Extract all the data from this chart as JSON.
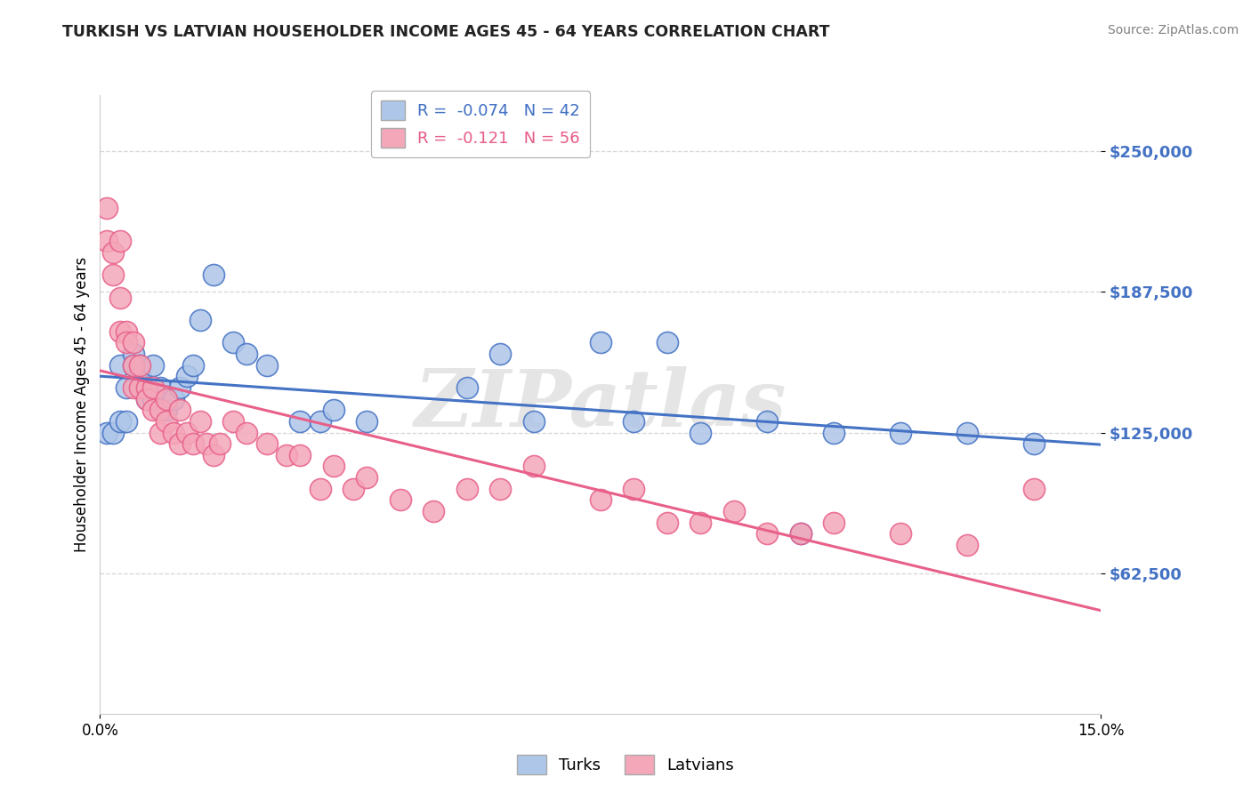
{
  "title": "TURKISH VS LATVIAN HOUSEHOLDER INCOME AGES 45 - 64 YEARS CORRELATION CHART",
  "source": "Source: ZipAtlas.com",
  "ylabel": "Householder Income Ages 45 - 64 years",
  "xlim": [
    0.0,
    0.15
  ],
  "ylim": [
    0,
    275000
  ],
  "yticks": [
    62500,
    125000,
    187500,
    250000
  ],
  "ytick_labels": [
    "$62,500",
    "$125,000",
    "$187,500",
    "$250,000"
  ],
  "xticks": [
    0.0,
    0.15
  ],
  "xtick_labels": [
    "0.0%",
    "15.0%"
  ],
  "legend_turks": "R =  -0.074   N = 42",
  "legend_latvians": "R =  -0.121   N = 56",
  "color_turks": "#AEC6E8",
  "color_latvians": "#F4A7B9",
  "line_color_turks": "#4472C4",
  "line_color_latvians": "#E8608A",
  "background_color": "#FFFFFF",
  "watermark": "ZIPatlas",
  "turks_x": [
    0.001,
    0.002,
    0.003,
    0.003,
    0.004,
    0.004,
    0.005,
    0.005,
    0.006,
    0.006,
    0.007,
    0.007,
    0.008,
    0.008,
    0.009,
    0.01,
    0.011,
    0.012,
    0.013,
    0.014,
    0.015,
    0.017,
    0.02,
    0.022,
    0.025,
    0.03,
    0.033,
    0.035,
    0.04,
    0.055,
    0.06,
    0.065,
    0.075,
    0.08,
    0.085,
    0.09,
    0.1,
    0.105,
    0.11,
    0.12,
    0.13,
    0.14
  ],
  "turks_y": [
    125000,
    125000,
    130000,
    155000,
    130000,
    145000,
    160000,
    155000,
    155000,
    150000,
    145000,
    140000,
    155000,
    140000,
    145000,
    135000,
    140000,
    145000,
    150000,
    155000,
    175000,
    195000,
    165000,
    160000,
    155000,
    130000,
    130000,
    135000,
    130000,
    145000,
    160000,
    130000,
    165000,
    130000,
    165000,
    125000,
    130000,
    80000,
    125000,
    125000,
    125000,
    120000
  ],
  "latvians_x": [
    0.001,
    0.001,
    0.002,
    0.002,
    0.003,
    0.003,
    0.003,
    0.004,
    0.004,
    0.005,
    0.005,
    0.005,
    0.006,
    0.006,
    0.007,
    0.007,
    0.008,
    0.008,
    0.009,
    0.009,
    0.01,
    0.01,
    0.011,
    0.012,
    0.012,
    0.013,
    0.014,
    0.015,
    0.016,
    0.017,
    0.018,
    0.02,
    0.022,
    0.025,
    0.028,
    0.03,
    0.033,
    0.035,
    0.038,
    0.04,
    0.045,
    0.05,
    0.055,
    0.06,
    0.065,
    0.075,
    0.08,
    0.085,
    0.09,
    0.095,
    0.1,
    0.105,
    0.11,
    0.12,
    0.13,
    0.14
  ],
  "latvians_y": [
    225000,
    210000,
    205000,
    195000,
    210000,
    185000,
    170000,
    170000,
    165000,
    165000,
    155000,
    145000,
    155000,
    145000,
    145000,
    140000,
    145000,
    135000,
    135000,
    125000,
    130000,
    140000,
    125000,
    135000,
    120000,
    125000,
    120000,
    130000,
    120000,
    115000,
    120000,
    130000,
    125000,
    120000,
    115000,
    115000,
    100000,
    110000,
    100000,
    105000,
    95000,
    90000,
    100000,
    100000,
    110000,
    95000,
    100000,
    85000,
    85000,
    90000,
    80000,
    80000,
    85000,
    80000,
    75000,
    100000
  ]
}
